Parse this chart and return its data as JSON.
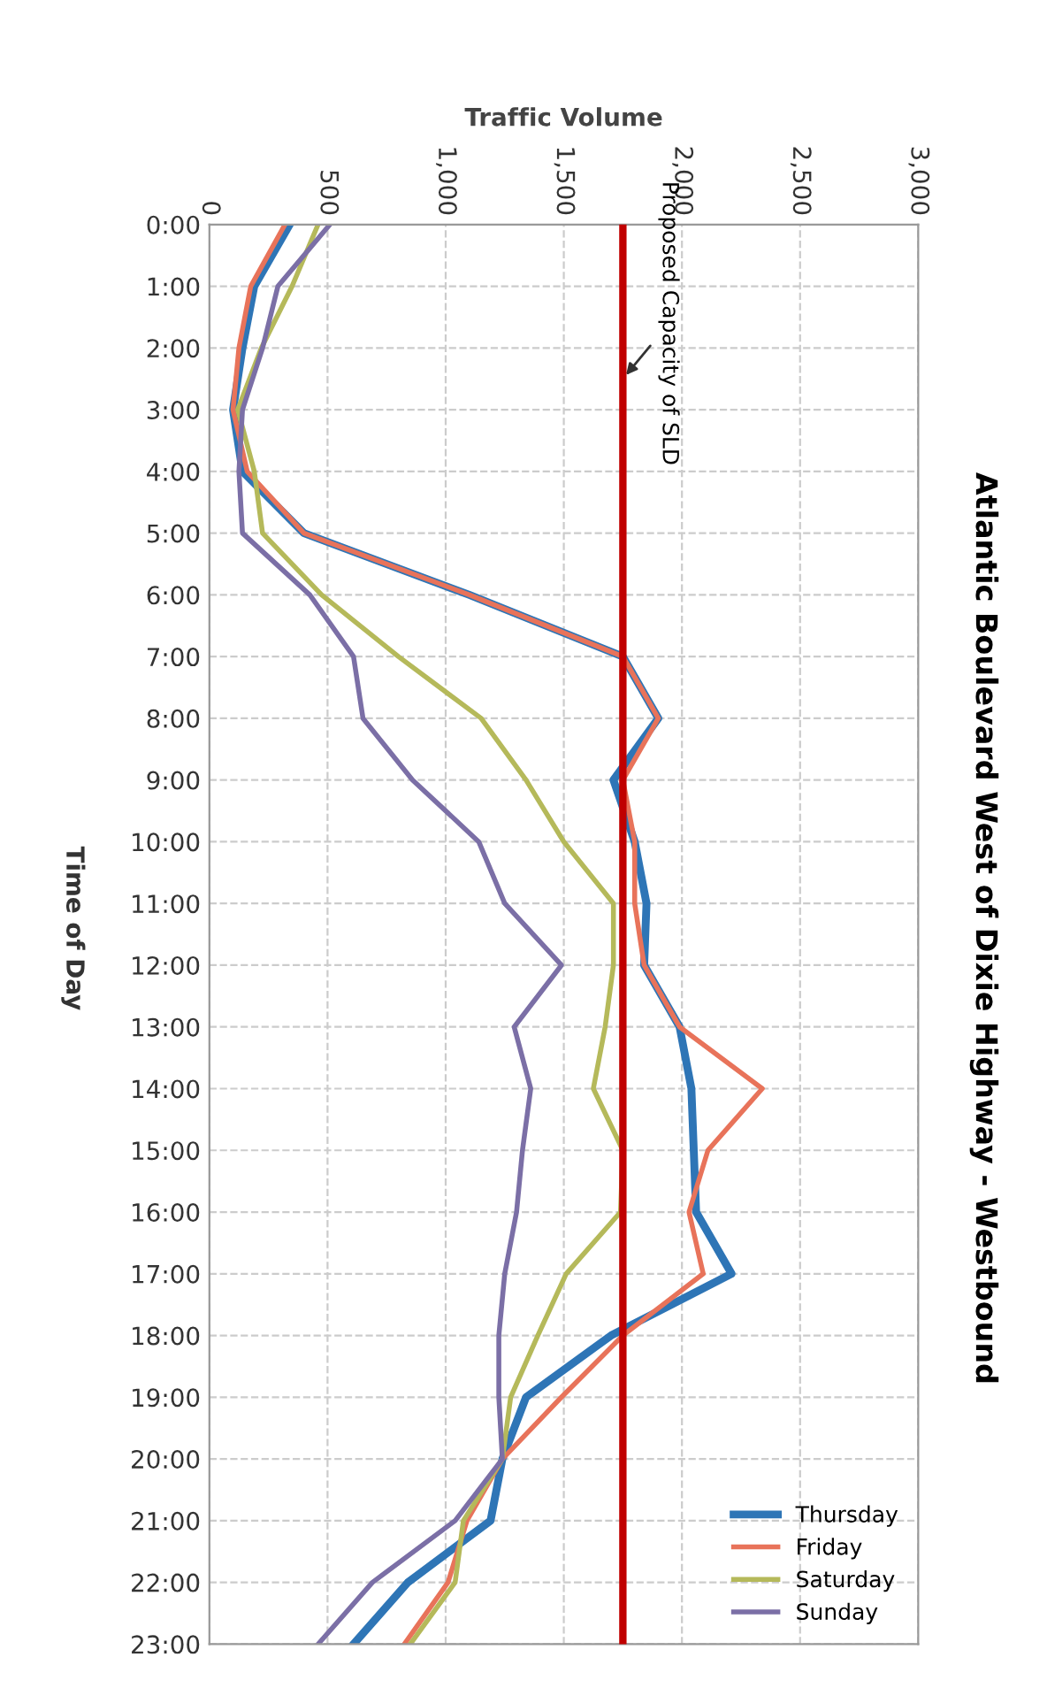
{
  "chart_data": {
    "type": "line",
    "orientation": "horizontal",
    "title": "Atlantic Boulevard West of Dixie Highway - Westbound",
    "xlabel": "Traffic Volume",
    "ylabel": "Time of Day",
    "categories": [
      "0:00",
      "1:00",
      "2:00",
      "3:00",
      "4:00",
      "5:00",
      "6:00",
      "7:00",
      "8:00",
      "9:00",
      "10:00",
      "11:00",
      "12:00",
      "13:00",
      "14:00",
      "15:00",
      "16:00",
      "17:00",
      "18:00",
      "19:00",
      "20:00",
      "21:00",
      "22:00",
      "23:00"
    ],
    "series": [
      {
        "name": "Thursday",
        "color": "#2e75b6",
        "values": [
          340,
          190,
          140,
          100,
          140,
          400,
          1100,
          1750,
          1900,
          1710,
          1800,
          1850,
          1840,
          1990,
          2040,
          2050,
          2060,
          2210,
          1700,
          1340,
          1240,
          1190,
          840,
          610
        ]
      },
      {
        "name": "Friday",
        "color": "#e8735a",
        "values": [
          320,
          175,
          125,
          100,
          160,
          400,
          1100,
          1750,
          1900,
          1750,
          1800,
          1800,
          1840,
          1990,
          2340,
          2110,
          2030,
          2090,
          1750,
          1490,
          1240,
          1090,
          1010,
          825
        ]
      },
      {
        "name": "Saturday",
        "color": "#b5b95a",
        "values": [
          460,
          350,
          220,
          120,
          190,
          225,
          475,
          800,
          1150,
          1340,
          1500,
          1710,
          1710,
          1675,
          1625,
          1750,
          1740,
          1510,
          1390,
          1275,
          1240,
          1075,
          1040,
          850
        ]
      },
      {
        "name": "Sunday",
        "color": "#7b6fa6",
        "values": [
          510,
          290,
          225,
          140,
          125,
          140,
          425,
          610,
          650,
          860,
          1140,
          1250,
          1490,
          1290,
          1360,
          1325,
          1300,
          1250,
          1225,
          1225,
          1240,
          1040,
          690,
          460
        ]
      }
    ],
    "xlim": [
      0,
      3000
    ],
    "xticks": [
      0,
      500,
      {
        "value": 1000,
        "label": "1,000"
      },
      {
        "value": 1500,
        "label": "1,500"
      },
      {
        "value": 2000,
        "label": "2,000"
      },
      {
        "value": 2500,
        "label": "2,500"
      },
      {
        "value": 3000,
        "label": "3,000"
      }
    ],
    "ref_lines": [
      {
        "axis": "x",
        "value": 1750,
        "label": "Proposed Capacity of SLD",
        "color": "#c00000"
      }
    ],
    "grid": true,
    "legend": "bottom right"
  }
}
